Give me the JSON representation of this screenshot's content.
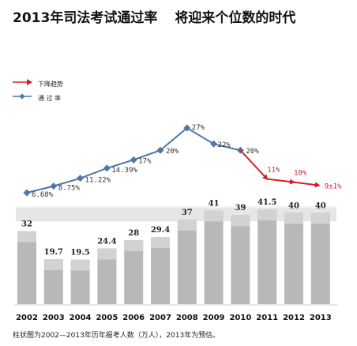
{
  "headline": {
    "title": "2013年司法考试通过率",
    "subtitle": "将迎来个位数的时代"
  },
  "legend": {
    "decline": "下降趋势",
    "pass_rate": "通 过 率"
  },
  "footnote": "柱状图为2002—2013年历年报考人数（万人），2013年为预估。",
  "colors": {
    "line": "#4f76a6",
    "decline": "#d11f24",
    "bar": "#b8b8b8",
    "bar_top": "#d2d2d2",
    "band": "#e6e6e6"
  },
  "chart_data": [
    {
      "type": "line",
      "title": "",
      "x": [
        "2002",
        "2003",
        "2004",
        "2005",
        "2006",
        "2007",
        "2008",
        "2009",
        "2010",
        "2011",
        "2012",
        "2013"
      ],
      "series": [
        {
          "name": "通 过 率",
          "values": [
            6.68,
            8.75,
            11.22,
            14.39,
            17,
            20,
            27,
            22,
            20,
            null,
            null,
            null
          ],
          "labels": [
            "6.68%",
            "8.75%",
            "11.22%",
            "14.39%",
            "17%",
            "20%",
            "27%",
            "22%",
            "20%",
            "",
            "",
            ""
          ]
        },
        {
          "name": "下降趋势",
          "values": [
            null,
            null,
            null,
            null,
            null,
            null,
            null,
            null,
            20,
            11,
            10,
            9
          ],
          "labels": [
            "",
            "",
            "",
            "",
            "",
            "",
            "",
            "",
            "",
            "11%",
            "10%",
            "9±1%"
          ]
        }
      ],
      "ylim": [
        0,
        30
      ],
      "grid": false,
      "legend_position": "top-left"
    },
    {
      "type": "bar",
      "categories": [
        "2002",
        "2003",
        "2004",
        "2005",
        "2006",
        "2007",
        "2008",
        "2009",
        "2010",
        "2011",
        "2012",
        "2013"
      ],
      "values": [
        32,
        19.7,
        19.5,
        24.4,
        28,
        29.4,
        37,
        41,
        39,
        41.5,
        40,
        40
      ],
      "value_labels": [
        "32",
        "19.7",
        "19.5",
        "24.4",
        "28",
        "29.4",
        "37",
        "41",
        "39",
        "41.5",
        "40",
        "40"
      ],
      "ylim": [
        0,
        45
      ],
      "grid": false
    }
  ]
}
